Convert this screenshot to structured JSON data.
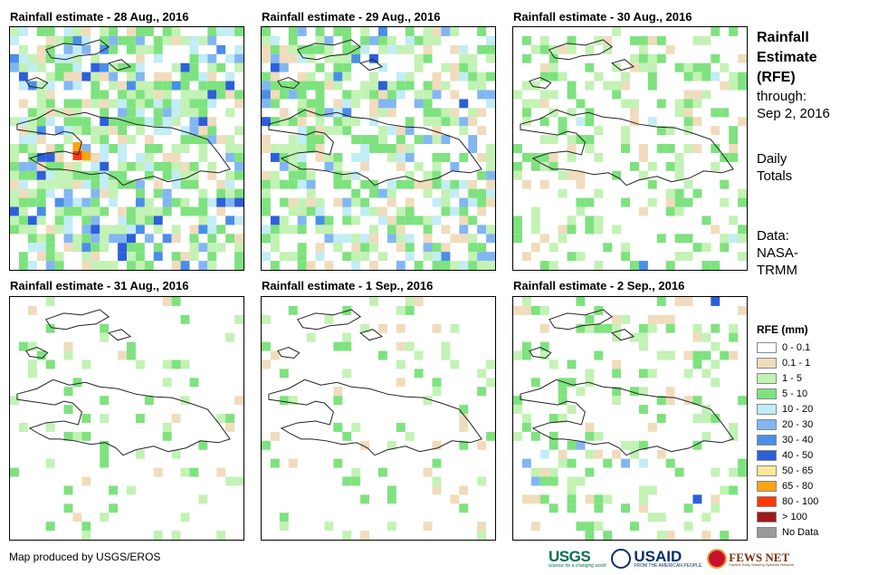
{
  "panels": [
    {
      "title": "Rainfall estimate - 28 Aug., 2016"
    },
    {
      "title": "Rainfall estimate - 29 Aug., 2016"
    },
    {
      "title": "Rainfall estimate - 30 Aug., 2016"
    },
    {
      "title": "Rainfall estimate - 31 Aug., 2016"
    },
    {
      "title": "Rainfall estimate - 1 Sep., 2016"
    },
    {
      "title": "Rainfall estimate - 2 Sep., 2016"
    }
  ],
  "side": {
    "title_line1": "Rainfall",
    "title_line2": "Estimate",
    "title_line3": "(RFE)",
    "through_label": "through:",
    "through_date": "Sep 2, 2016",
    "totals_line1": "Daily",
    "totals_line2": "Totals",
    "data_line1": "Data:",
    "data_line2": "NASA-",
    "data_line3": "TRMM"
  },
  "legend": {
    "title": "RFE (mm)",
    "items": [
      {
        "label": "0 - 0.1",
        "color": "#ffffff"
      },
      {
        "label": "0.1 - 1",
        "color": "#f0dcbc"
      },
      {
        "label": "1 - 5",
        "color": "#c2f2b4"
      },
      {
        "label": "5 - 10",
        "color": "#7ee27e"
      },
      {
        "label": "10 - 20",
        "color": "#c2ecf6"
      },
      {
        "label": "20 - 30",
        "color": "#82b6f2"
      },
      {
        "label": "30 - 40",
        "color": "#4a8ee8"
      },
      {
        "label": "40 - 50",
        "color": "#2d5fd8"
      },
      {
        "label": "50 - 65",
        "color": "#fce896"
      },
      {
        "label": "65 - 80",
        "color": "#fca414"
      },
      {
        "label": "80 - 100",
        "color": "#f83a0a"
      },
      {
        "label": "> 100",
        "color": "#a01a1a"
      },
      {
        "label": "No Data",
        "color": "#9a9a9a"
      }
    ]
  },
  "credit": "Map produced by USGS/EROS",
  "logos": {
    "usgs": "USGS",
    "usgs_tagline": "science for a changing world",
    "usaid": "USAID",
    "usaid_tagline": "FROM THE AMERICAN PEOPLE",
    "fews": "FEWS NET",
    "fews_tagline": "Famine Early Warning Systems Network"
  }
}
